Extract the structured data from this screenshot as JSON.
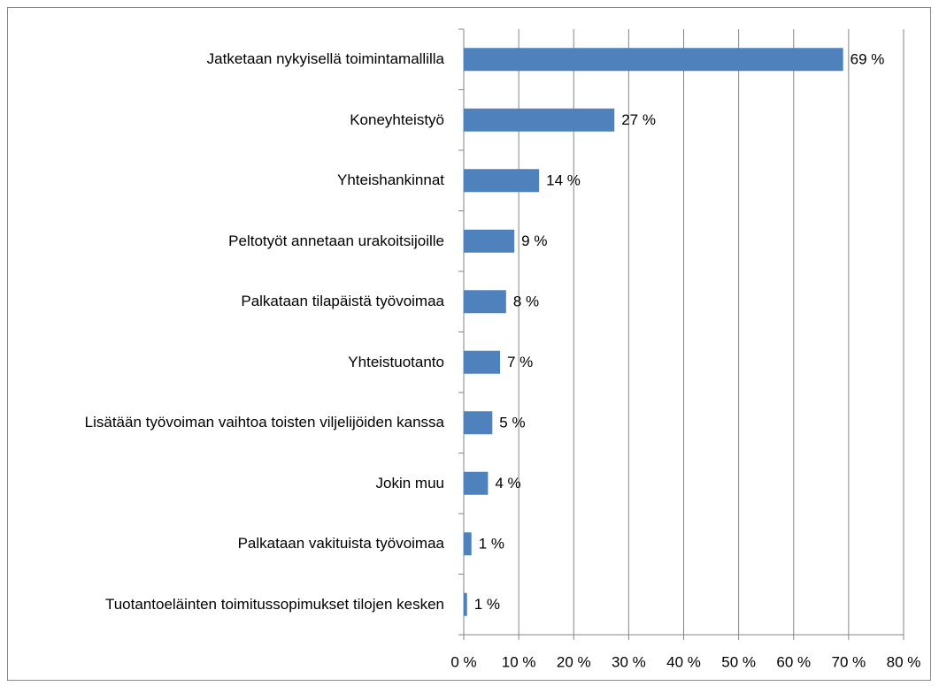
{
  "chart_data": {
    "type": "bar",
    "orientation": "horizontal",
    "categories": [
      "Jatketaan nykyisellä toimintamallilla",
      "Koneyhteistyö",
      "Yhteishankinnat",
      "Peltotyöt annetaan urakoitsijoille",
      "Palkataan tilapäistä työvoimaa",
      "Yhteistuotanto",
      "Lisätään työvoiman vaihtoa toisten viljelijöiden kanssa",
      "Jokin muu",
      "Palkataan vakituista työvoimaa",
      "Tuotantoeläinten toimitussopimukset tilojen kesken"
    ],
    "values": [
      69,
      27.4,
      13.7,
      9.2,
      7.7,
      6.6,
      5.2,
      4.4,
      1.4,
      0.6
    ],
    "value_labels": [
      "69 %",
      "27 %",
      "14 %",
      "9 %",
      "8 %",
      "7 %",
      "5 %",
      "4 %",
      "1 %",
      "1 %"
    ],
    "color": "#4f81bd",
    "xlim": [
      0,
      80
    ],
    "xticks": [
      {
        "value": 0,
        "label": "0 %"
      },
      {
        "value": 10,
        "label": "10 %"
      },
      {
        "value": 20,
        "label": "20 %"
      },
      {
        "value": 30,
        "label": "30 %"
      },
      {
        "value": 40,
        "label": "40 %"
      },
      {
        "value": 50,
        "label": "50 %"
      },
      {
        "value": 60,
        "label": "60 %"
      },
      {
        "value": 70,
        "label": "70 %"
      },
      {
        "value": 80,
        "label": "80 %"
      }
    ],
    "grid": true
  }
}
